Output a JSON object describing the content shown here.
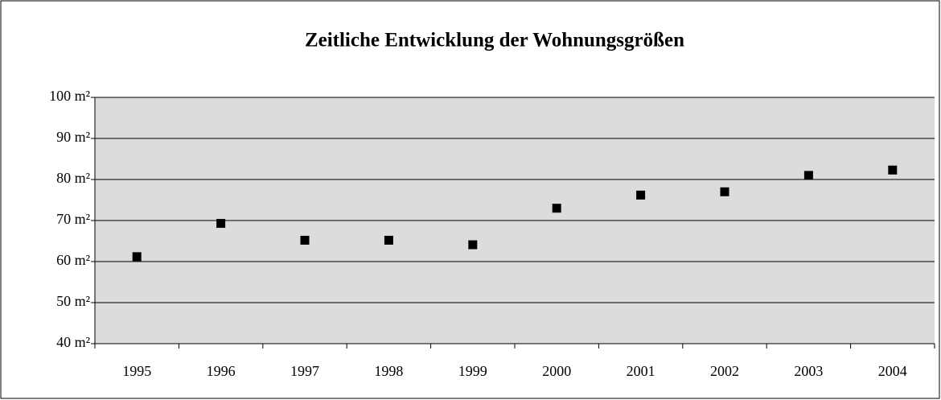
{
  "chart_data": {
    "type": "line",
    "title": "Zeitliche Entwicklung der Wohnungsgrößen",
    "categories": [
      "1995",
      "1996",
      "1997",
      "1998",
      "1999",
      "2000",
      "2001",
      "2002",
      "2003",
      "2004"
    ],
    "values": [
      61.2,
      69.3,
      65.2,
      65.2,
      64.1,
      73.0,
      76.2,
      77.0,
      81.0,
      82.3
    ],
    "color": "#000000",
    "ylim": [
      40,
      100
    ],
    "yticks": [
      {
        "value": 40,
        "label": "40 m²"
      },
      {
        "value": 50,
        "label": "50 m²"
      },
      {
        "value": 60,
        "label": "60 m²"
      },
      {
        "value": 70,
        "label": "70 m²"
      },
      {
        "value": 80,
        "label": "80 m²"
      },
      {
        "value": 90,
        "label": "90 m²"
      },
      {
        "value": 100,
        "label": "100 m²"
      }
    ],
    "grid": true
  }
}
